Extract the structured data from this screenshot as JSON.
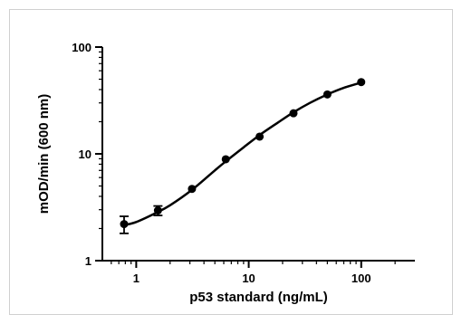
{
  "chart_data": {
    "type": "scatter",
    "title": "",
    "xlabel": "p53 standard (ng/mL)",
    "ylabel": "mOD/min (600 nm)",
    "x_scale": "log",
    "y_scale": "log",
    "xlim": [
      0.5,
      300
    ],
    "ylim": [
      1,
      100
    ],
    "x_ticks": [
      1,
      10,
      100
    ],
    "x_tick_labels": [
      "1",
      "10",
      "100"
    ],
    "y_ticks": [
      1,
      10,
      100
    ],
    "y_tick_labels": [
      "1",
      "10",
      "100"
    ],
    "grid": false,
    "legend": "none",
    "color": "#000000",
    "series": [
      {
        "x": [
          0.78,
          1.56,
          3.13,
          6.25,
          12.5,
          25,
          50,
          100
        ],
        "y": [
          2.2,
          2.95,
          4.7,
          8.9,
          14.5,
          24,
          36,
          47
        ],
        "y_error": [
          0.4,
          0.3,
          0,
          0,
          0,
          0,
          0,
          0
        ],
        "fit_curve": [
          [
            0.78,
            2.15
          ],
          [
            1.0,
            2.3
          ],
          [
            1.5,
            2.8
          ],
          [
            2.0,
            3.3
          ],
          [
            3.13,
            4.6
          ],
          [
            5.0,
            7.0
          ],
          [
            6.25,
            8.5
          ],
          [
            9.0,
            11.5
          ],
          [
            12.5,
            15.0
          ],
          [
            18.0,
            19.5
          ],
          [
            25,
            24.5
          ],
          [
            35,
            30.0
          ],
          [
            50,
            36.0
          ],
          [
            70,
            41.5
          ],
          [
            100,
            46.5
          ]
        ]
      }
    ]
  }
}
